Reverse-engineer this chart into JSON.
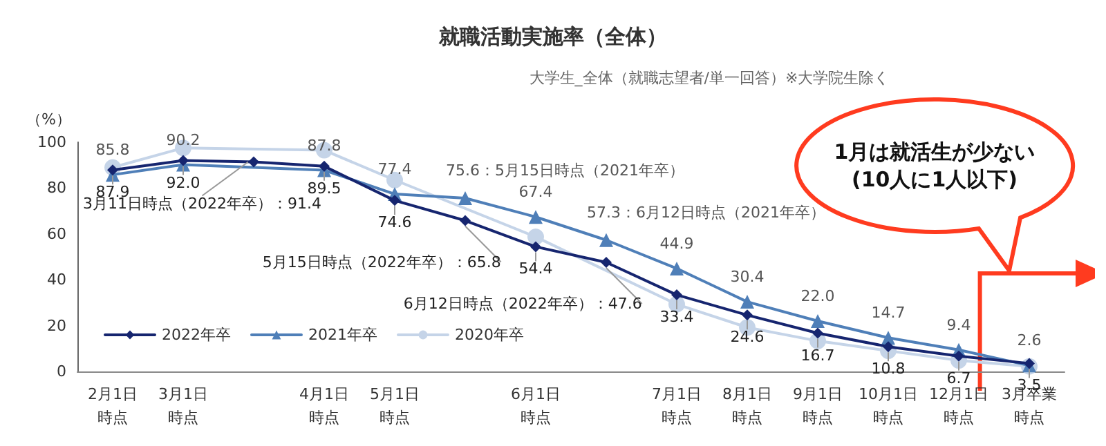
{
  "chart_data": {
    "type": "line",
    "title": "就職活動実施率（全体）",
    "subtitle": "大学生_全体（就職志望者/単一回答）※大学院生除く",
    "ylabel": "（%）",
    "annotations": [
      "1月は就活生が少ない(10人に1人以下)"
    ],
    "categories": [
      "2月1日時点",
      "3月1日時点",
      null,
      "4月1日時点",
      "5月1日時点",
      null,
      "6月1日時点",
      null,
      "7月1日時点",
      "8月1日時点",
      "9月1日時点",
      "10月1日時点",
      "12月1日時点",
      "3月卒業時点"
    ],
    "ylim": [
      0,
      100
    ],
    "yticks": [
      0,
      20,
      40,
      60,
      80,
      100
    ],
    "grid": false,
    "legend": "bottom left",
    "series": [
      {
        "name": "2022年卒",
        "color": "#16256f",
        "marker": "diamond",
        "values": [
          87.9,
          92.0,
          91.4,
          89.5,
          74.6,
          65.8,
          54.4,
          47.6,
          33.4,
          24.6,
          16.7,
          10.8,
          6.7,
          3.5
        ],
        "value_labels": [
          "87.9",
          "92.0",
          "3月11日時点（2022年卒）：91.4",
          "89.5",
          "74.6",
          "5月15日時点（2022年卒）：65.8",
          "54.4",
          "6月12日時点（2022年卒）：47.6",
          "33.4",
          "24.6",
          "16.7",
          "10.8",
          "6.7",
          "3.5"
        ]
      },
      {
        "name": "2021年卒",
        "color": "#4f7fb8",
        "marker": "triangle",
        "values": [
          85.8,
          90.2,
          null,
          87.8,
          77.4,
          75.6,
          67.4,
          57.3,
          44.9,
          30.4,
          22.0,
          14.7,
          9.4,
          2.6
        ],
        "value_labels": [
          "85.8",
          "90.2",
          null,
          "87.8",
          "77.4",
          "75.6：5月15日時点（2021年卒）",
          "67.4",
          "57.3：6月12日時点（2021年卒）",
          "44.9",
          "30.4",
          "22.0",
          "14.7",
          "9.4",
          "2.6"
        ]
      },
      {
        "name": "2020年卒",
        "color": "#c5d4e8",
        "marker": "circle",
        "values": [
          89,
          97.5,
          null,
          96.5,
          83.5,
          null,
          58.7,
          null,
          29.3,
          19.2,
          13.3,
          9,
          4.8,
          2.2
        ]
      }
    ]
  }
}
